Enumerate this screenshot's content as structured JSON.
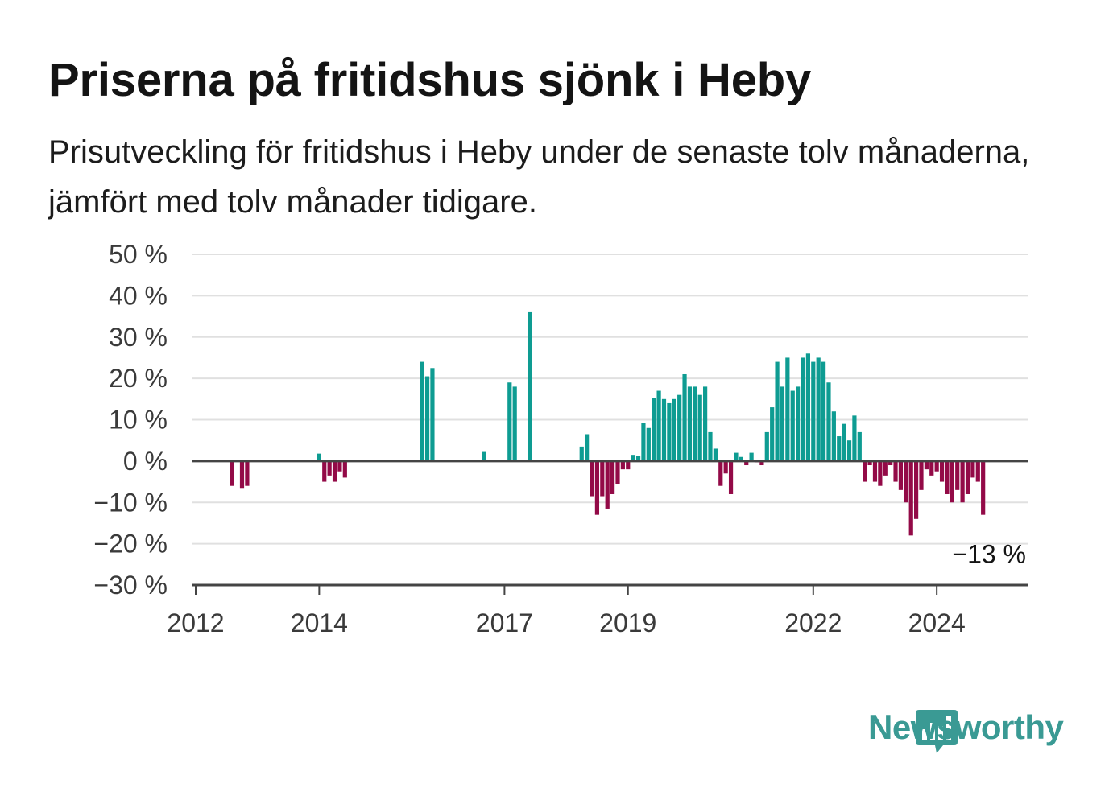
{
  "title": "Priserna på fritidshus sjönk i Heby",
  "subtitle": "Prisutveckling för fritidshus i Heby under de senaste tolv månaderna, jämfört med tolv månader tidigare.",
  "brand": "Newsworthy",
  "colors": {
    "positive": "#0e9c92",
    "negative": "#930a47",
    "grid": "#e0e0e0",
    "axis": "#444444",
    "brand": "#3a9a94"
  },
  "chart_data": {
    "type": "bar",
    "title": "Priserna på fritidshus sjönk i Heby",
    "subtitle": "Prisutveckling för fritidshus i Heby under de senaste tolv månaderna, jämfört med tolv månader tidigare.",
    "xlabel": "",
    "ylabel": "",
    "ylim": [
      -30,
      50
    ],
    "y_ticks": [
      50,
      40,
      30,
      20,
      10,
      0,
      -10,
      -20,
      -30
    ],
    "y_tick_labels": [
      "50 %",
      "40 %",
      "30 %",
      "20 %",
      "10 %",
      "0 %",
      "−10 %",
      "−20 %",
      "−30 %"
    ],
    "x_ticks": [
      "2012-01",
      "2014-01",
      "2017-01",
      "2019-01",
      "2022-01",
      "2024-01"
    ],
    "x_tick_labels": [
      "2012",
      "2014",
      "2017",
      "2019",
      "2022",
      "2024"
    ],
    "grid": true,
    "annotation": {
      "label": "−13 %",
      "x": "2024-12",
      "y": -13
    },
    "series": [
      {
        "points": [
          [
            "2012-08",
            -6
          ],
          [
            "2012-10",
            -6.5
          ],
          [
            "2012-11",
            -6
          ],
          [
            "2014-01",
            1.8
          ],
          [
            "2014-02",
            -5
          ],
          [
            "2014-03",
            -3.5
          ],
          [
            "2014-04",
            -5
          ],
          [
            "2014-05",
            -2.5
          ],
          [
            "2014-06",
            -4
          ],
          [
            "2015-09",
            24
          ],
          [
            "2015-10",
            20.5
          ],
          [
            "2015-11",
            22.5
          ],
          [
            "2016-09",
            2.2
          ],
          [
            "2017-02",
            19
          ],
          [
            "2017-03",
            18
          ],
          [
            "2017-06",
            36
          ],
          [
            "2018-04",
            3.5
          ],
          [
            "2018-05",
            6.5
          ],
          [
            "2018-06",
            -8.5
          ],
          [
            "2018-07",
            -13
          ],
          [
            "2018-08",
            -8.5
          ],
          [
            "2018-09",
            -11.5
          ],
          [
            "2018-10",
            -8
          ],
          [
            "2018-11",
            -5.5
          ],
          [
            "2018-12",
            -2
          ],
          [
            "2019-01",
            -2
          ],
          [
            "2019-02",
            1.5
          ],
          [
            "2019-03",
            1.2
          ],
          [
            "2019-04",
            9.3
          ],
          [
            "2019-05",
            8
          ],
          [
            "2019-06",
            15.2
          ],
          [
            "2019-07",
            17
          ],
          [
            "2019-08",
            15
          ],
          [
            "2019-09",
            14
          ],
          [
            "2019-10",
            15
          ],
          [
            "2019-11",
            16
          ],
          [
            "2019-12",
            21
          ],
          [
            "2020-01",
            18
          ],
          [
            "2020-02",
            18
          ],
          [
            "2020-03",
            16
          ],
          [
            "2020-04",
            18
          ],
          [
            "2020-05",
            7
          ],
          [
            "2020-06",
            3
          ],
          [
            "2020-07",
            -6
          ],
          [
            "2020-08",
            -3
          ],
          [
            "2020-09",
            -8
          ],
          [
            "2020-10",
            2
          ],
          [
            "2020-11",
            1
          ],
          [
            "2020-12",
            -1
          ],
          [
            "2021-01",
            2
          ],
          [
            "2021-02",
            -0.3
          ],
          [
            "2021-03",
            -1
          ],
          [
            "2021-04",
            7
          ],
          [
            "2021-05",
            13
          ],
          [
            "2021-06",
            24
          ],
          [
            "2021-07",
            18
          ],
          [
            "2021-08",
            25
          ],
          [
            "2021-09",
            17
          ],
          [
            "2021-10",
            18
          ],
          [
            "2021-11",
            25
          ],
          [
            "2021-12",
            26
          ],
          [
            "2022-01",
            24
          ],
          [
            "2022-02",
            25
          ],
          [
            "2022-03",
            24
          ],
          [
            "2022-04",
            19
          ],
          [
            "2022-05",
            12
          ],
          [
            "2022-06",
            6
          ],
          [
            "2022-07",
            9
          ],
          [
            "2022-08",
            5
          ],
          [
            "2022-09",
            11
          ],
          [
            "2022-10",
            7
          ],
          [
            "2022-11",
            -5
          ],
          [
            "2022-12",
            -1
          ],
          [
            "2023-01",
            -5
          ],
          [
            "2023-02",
            -6
          ],
          [
            "2023-03",
            -3.5
          ],
          [
            "2023-04",
            -1
          ],
          [
            "2023-05",
            -5
          ],
          [
            "2023-06",
            -7
          ],
          [
            "2023-07",
            -10
          ],
          [
            "2023-08",
            -18
          ],
          [
            "2023-09",
            -14
          ],
          [
            "2023-10",
            -7
          ],
          [
            "2023-11",
            -2
          ],
          [
            "2023-12",
            -3.5
          ],
          [
            "2024-01",
            -2.5
          ],
          [
            "2024-02",
            -5
          ],
          [
            "2024-03",
            -8
          ],
          [
            "2024-04",
            -10
          ],
          [
            "2024-05",
            -7
          ],
          [
            "2024-06",
            -10
          ],
          [
            "2024-07",
            -8
          ],
          [
            "2024-08",
            -4
          ],
          [
            "2024-09",
            -5
          ],
          [
            "2024-10",
            -13
          ]
        ]
      }
    ]
  }
}
